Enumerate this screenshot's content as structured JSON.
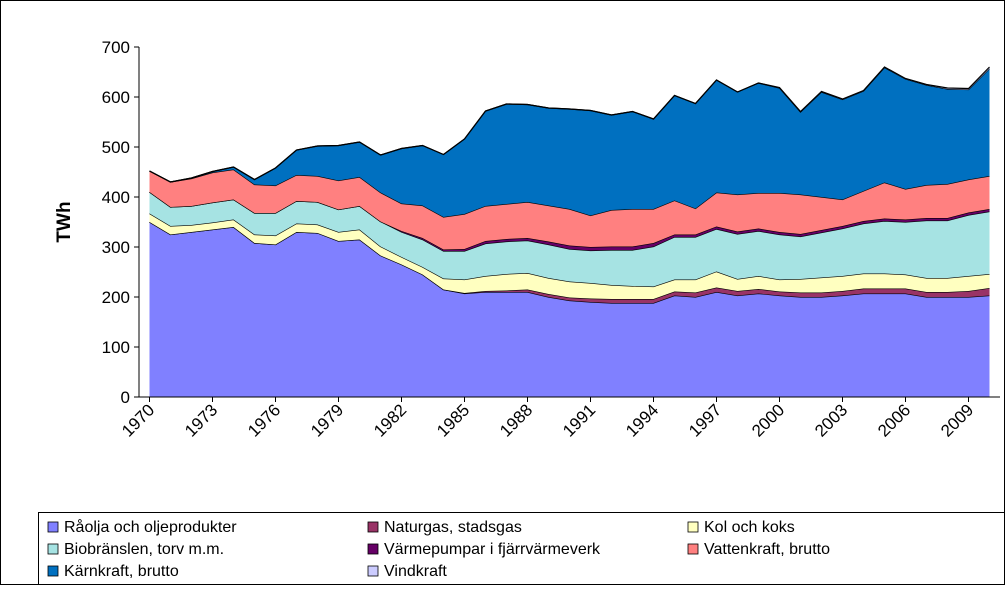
{
  "chart_data": {
    "type": "stacked-area",
    "y_label": "TWh",
    "x": [
      1970,
      1971,
      1972,
      1973,
      1974,
      1975,
      1976,
      1977,
      1978,
      1979,
      1980,
      1981,
      1982,
      1983,
      1984,
      1985,
      1986,
      1987,
      1988,
      1989,
      1990,
      1991,
      1992,
      1993,
      1994,
      1995,
      1996,
      1997,
      1998,
      1999,
      2000,
      2001,
      2002,
      2003,
      2004,
      2005,
      2006,
      2007,
      2008,
      2009,
      2010
    ],
    "xlim": [
      1969.5,
      2010.5
    ],
    "xticks": [
      1970,
      1973,
      1976,
      1979,
      1982,
      1985,
      1988,
      1991,
      1994,
      1997,
      2000,
      2003,
      2006,
      2009
    ],
    "ylim": [
      0,
      700
    ],
    "yticks": [
      0,
      100,
      200,
      300,
      400,
      500,
      600,
      700
    ],
    "series": [
      {
        "name": "Råolja och oljeprodukter",
        "color": "#8080ff",
        "values": [
          350,
          325,
          330,
          335,
          340,
          308,
          305,
          330,
          328,
          312,
          315,
          283,
          265,
          245,
          215,
          207,
          210,
          210,
          210,
          200,
          193,
          190,
          188,
          188,
          188,
          203,
          200,
          210,
          203,
          207,
          203,
          200,
          200,
          203,
          207,
          207,
          207,
          200,
          200,
          200,
          203
        ]
      },
      {
        "name": "Naturgas, stadsgas",
        "color": "#993366",
        "values": [
          0,
          0,
          0,
          0,
          0,
          0,
          0,
          0,
          0,
          0,
          0,
          0,
          0,
          0,
          0,
          1,
          2,
          3,
          5,
          6,
          6,
          7,
          8,
          8,
          8,
          8,
          9,
          9,
          9,
          9,
          8,
          9,
          9,
          9,
          10,
          10,
          10,
          10,
          10,
          12,
          15
        ]
      },
      {
        "name": "Kol och koks",
        "color": "#ffffc0",
        "values": [
          17,
          17,
          14,
          14,
          15,
          17,
          18,
          17,
          17,
          18,
          20,
          18,
          15,
          15,
          22,
          27,
          30,
          33,
          33,
          32,
          32,
          31,
          28,
          26,
          25,
          24,
          26,
          32,
          24,
          26,
          24,
          27,
          30,
          30,
          30,
          30,
          28,
          28,
          28,
          30,
          28
        ]
      },
      {
        "name": "Biobränslen, torv m.m.",
        "color": "#a6e3e3",
        "values": [
          43,
          38,
          38,
          40,
          40,
          43,
          45,
          45,
          45,
          45,
          47,
          50,
          50,
          55,
          55,
          57,
          65,
          65,
          65,
          67,
          65,
          65,
          70,
          72,
          80,
          85,
          85,
          85,
          90,
          90,
          90,
          85,
          90,
          95,
          100,
          105,
          105,
          115,
          115,
          122,
          125
        ]
      },
      {
        "name": "Värmepumpar i fjärrvärmeverk",
        "color": "#660066",
        "values": [
          0,
          0,
          0,
          0,
          0,
          0,
          0,
          0,
          0,
          0,
          0,
          0,
          2,
          3,
          3,
          4,
          5,
          5,
          5,
          6,
          7,
          7,
          7,
          7,
          7,
          5,
          5,
          5,
          5,
          5,
          5,
          5,
          5,
          5,
          5,
          5,
          5,
          5,
          5,
          5,
          5
        ]
      },
      {
        "name": "Vattenkraft, brutto",
        "color": "#ff8080",
        "values": [
          42,
          50,
          55,
          60,
          60,
          57,
          55,
          52,
          52,
          58,
          58,
          58,
          55,
          65,
          65,
          70,
          70,
          70,
          72,
          72,
          73,
          63,
          73,
          75,
          68,
          68,
          52,
          68,
          74,
          71,
          78,
          79,
          66,
          53,
          60,
          72,
          61,
          66,
          68,
          66,
          66
        ]
      },
      {
        "name": "Kärnkraft, brutto",
        "color": "#0070c0",
        "values": [
          0,
          0,
          1,
          2,
          5,
          10,
          35,
          50,
          60,
          70,
          70,
          75,
          110,
          120,
          125,
          150,
          190,
          200,
          195,
          195,
          200,
          210,
          190,
          195,
          180,
          210,
          210,
          225,
          205,
          220,
          210,
          165,
          210,
          200,
          200,
          230,
          220,
          200,
          190,
          180,
          215
        ]
      },
      {
        "name": "Vindkraft",
        "color": "#ccccff",
        "values": [
          0,
          0,
          0,
          0,
          0,
          0,
          0,
          0,
          0,
          0,
          0,
          0,
          0,
          0,
          0,
          0,
          0,
          0,
          0,
          0,
          0,
          0,
          0,
          0,
          0,
          0,
          0,
          0,
          0,
          0,
          1,
          1,
          1,
          1,
          1,
          1,
          1,
          1,
          2,
          2,
          3
        ]
      }
    ]
  }
}
